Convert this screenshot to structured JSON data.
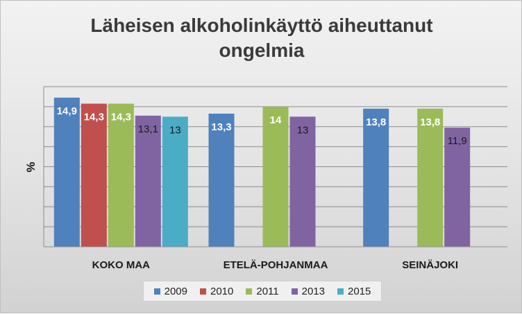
{
  "chart_data": {
    "type": "bar",
    "title": "Läheisen alkoholinkäyttö aiheuttanut ongelmia",
    "ylabel": "%",
    "xlabel": "",
    "ylim": [
      0,
      16
    ],
    "grid": true,
    "legend_position": "bottom",
    "categories": [
      "KOKO MAA",
      "ETELÄ-POHJANMAA",
      "SEINÄJOKI"
    ],
    "series": [
      {
        "name": "2009",
        "color": "#4f81bd",
        "values": [
          14.9,
          13.3,
          13.8
        ],
        "labels": [
          "14,9",
          "13,3",
          "13,8"
        ]
      },
      {
        "name": "2010",
        "color": "#c0504d",
        "values": [
          14.3,
          null,
          null
        ],
        "labels": [
          "14,3",
          "",
          ""
        ]
      },
      {
        "name": "2011",
        "color": "#9bbb59",
        "values": [
          14.3,
          14,
          13.8
        ],
        "labels": [
          "14,3",
          "14",
          "13,8"
        ]
      },
      {
        "name": "2013",
        "color": "#8064a2",
        "values": [
          13.1,
          13,
          11.9
        ],
        "labels": [
          "13,1",
          "13",
          "11,9"
        ]
      },
      {
        "name": "2015",
        "color": "#4bacc6",
        "values": [
          13,
          null,
          null
        ],
        "labels": [
          "13",
          "",
          ""
        ]
      }
    ]
  }
}
